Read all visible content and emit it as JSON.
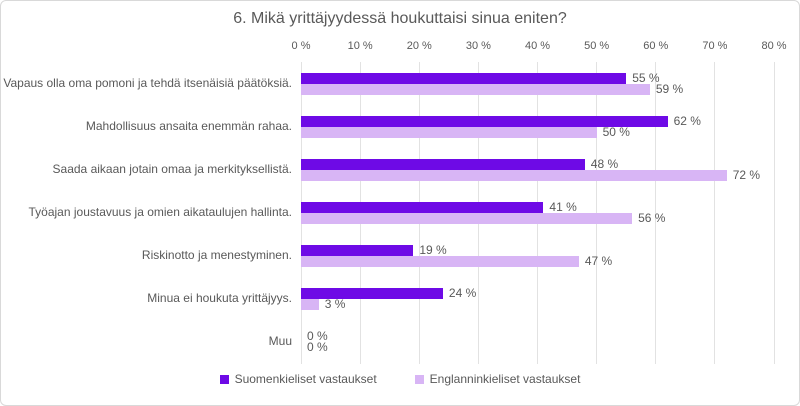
{
  "chart_data": {
    "type": "bar",
    "orientation": "horizontal",
    "title": "6. Mikä yrittäjyydessä houkuttaisi sinua eniten?",
    "categories": [
      "Vapaus olla oma pomoni ja tehdä itsenäisiä päätöksiä.",
      "Mahdollisuus ansaita enemmän rahaa.",
      "Saada aikaan jotain omaa ja merkityksellistä.",
      "Työajan joustavuus ja omien aikataulujen hallinta.",
      "Riskinotto ja menestyminen.",
      "Minua ei houkuta yrittäjyys.",
      "Muu"
    ],
    "series": [
      {
        "name": "Suomenkieliset vastaukset",
        "color": "#6e0ae6",
        "values": [
          55,
          62,
          48,
          41,
          19,
          24,
          0
        ],
        "labels": [
          "55 %",
          "62 %",
          "48 %",
          "41 %",
          "19 %",
          "24 %",
          "0 %"
        ]
      },
      {
        "name": "Englanninkieliset vastaukset",
        "color": "#d8b5f5",
        "values": [
          59,
          50,
          72,
          56,
          47,
          3,
          0
        ],
        "labels": [
          "59 %",
          "50 %",
          "72 %",
          "56 %",
          "47 %",
          "3 %",
          "0 %"
        ]
      }
    ],
    "xlim": [
      0,
      80
    ],
    "x_ticks": [
      "0 %",
      "10 %",
      "20 %",
      "30 %",
      "40 %",
      "50 %",
      "60 %",
      "70 %",
      "80 %"
    ],
    "axis_position": "top",
    "grid": "vertical",
    "legend_position": "bottom",
    "colors": {
      "text": "#595959",
      "gridline": "#e2e2e2",
      "border": "#d9d9d9",
      "background": "#ffffff"
    }
  }
}
